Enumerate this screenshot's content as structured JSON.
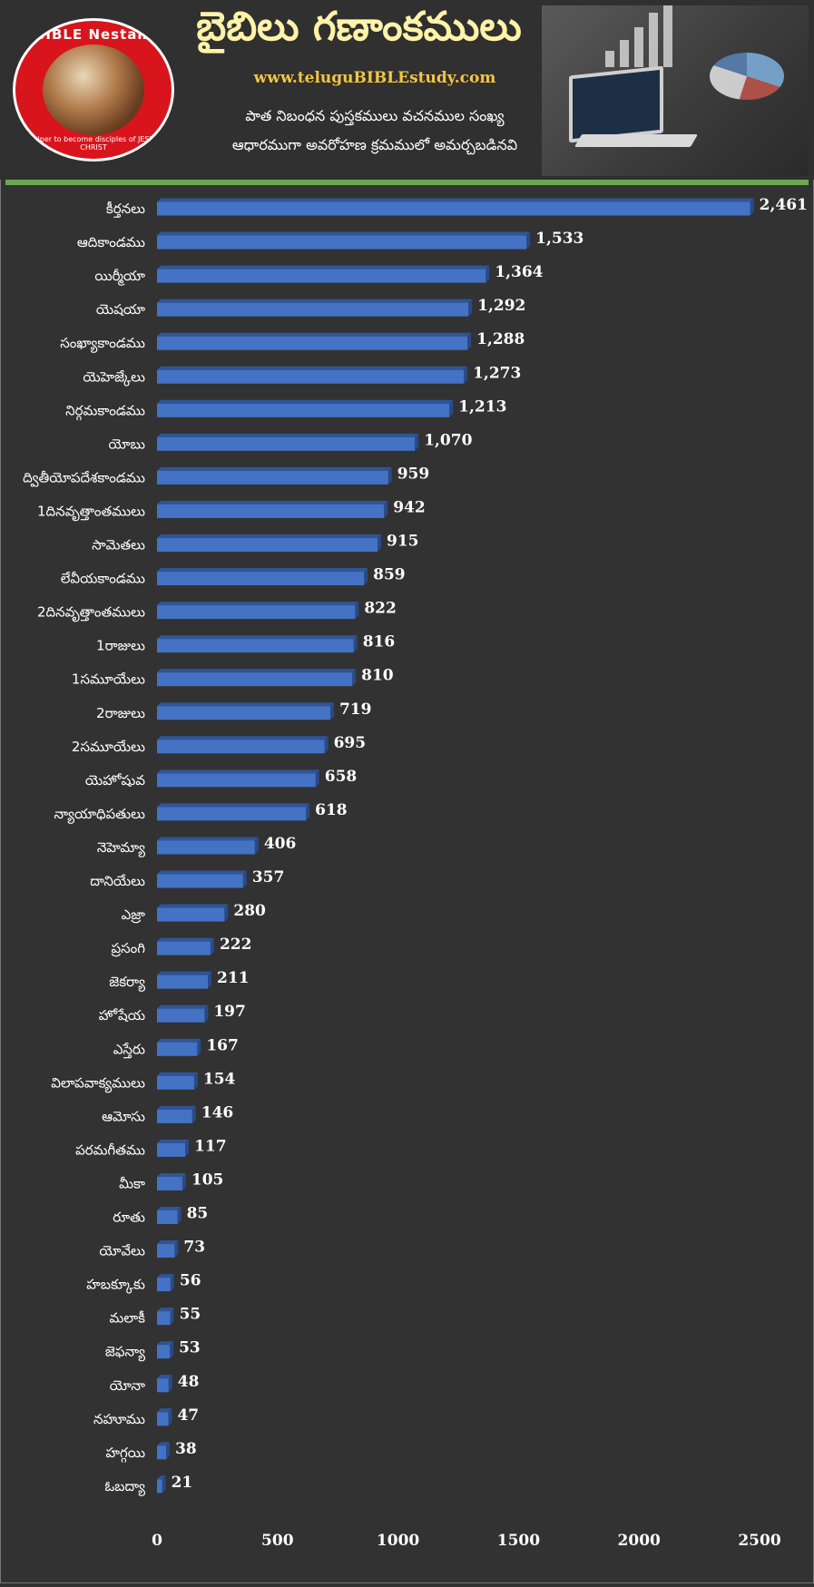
{
  "header": {
    "title": "బైబిలు గణాంకములు",
    "website": "www.teluguBIBLEstudy.com",
    "subtitle_line1": "పాత నిబంధన పుస్తకములు వచనముల సంఖ్య",
    "subtitle_line2": "ఆధారముగా అవరోహణ క్రమములో అమర్చబడినవి",
    "logo_text": "BIBLE Nestam",
    "logo_tagline": "Helper to become disciples of JESUS CHRIST"
  },
  "colors": {
    "background": "#323232",
    "bar": "#4472c4",
    "bar_top": "#2f5597",
    "accent_rule": "#6aa84f",
    "title": "#fff3a8",
    "website": "#f3c544"
  },
  "chart_data": {
    "type": "bar",
    "orientation": "horizontal",
    "categories": [
      "కీర్తనలు",
      "ఆదికాండము",
      "యిర్మీయా",
      "యెషయా",
      "సంఖ్యాకాండము",
      "యెహెజ్కేలు",
      "నిర్గమకాండము",
      "యోబు",
      "ద్వితీయోపదేశకాండము",
      "1దినవృత్తాంతములు",
      "సామెతలు",
      "లేవీయకాండము",
      "2దినవృత్తాంతములు",
      "1రాజులు",
      "1సమూయేలు",
      "2రాజులు",
      "2సమూయేలు",
      "యెహోషువ",
      "న్యాయాధిపతులు",
      "నెహెమ్యా",
      "దానియేలు",
      "ఎజ్రా",
      "ప్రసంగి",
      "జెకర్యా",
      "హోషేయ",
      "ఎస్తేరు",
      "విలాపవాక్యములు",
      "ఆమోసు",
      "పరమగీతము",
      "మీకా",
      "రూతు",
      "యోవేలు",
      "హబక్కూకు",
      "మలాకీ",
      "జెఫన్యా",
      "యోనా",
      "నహూము",
      "హగ్గయి",
      "ఓబద్యా"
    ],
    "values": [
      2461,
      1533,
      1364,
      1292,
      1288,
      1273,
      1213,
      1070,
      959,
      942,
      915,
      859,
      822,
      816,
      810,
      719,
      695,
      658,
      618,
      406,
      357,
      280,
      222,
      211,
      197,
      167,
      154,
      146,
      117,
      105,
      85,
      73,
      56,
      55,
      53,
      48,
      47,
      38,
      21
    ],
    "value_labels": [
      "2,461",
      "1,533",
      "1,364",
      "1,292",
      "1,288",
      "1,273",
      "1,213",
      "1,070",
      "959",
      "942",
      "915",
      "859",
      "822",
      "816",
      "810",
      "719",
      "695",
      "658",
      "618",
      "406",
      "357",
      "280",
      "222",
      "211",
      "197",
      "167",
      "154",
      "146",
      "117",
      "105",
      "85",
      "73",
      "56",
      "55",
      "53",
      "48",
      "47",
      "38",
      "21"
    ],
    "x_ticks": [
      0,
      500,
      1000,
      1500,
      2000,
      2500
    ],
    "xlim": [
      0,
      2500
    ],
    "title": "",
    "xlabel": "",
    "ylabel": "",
    "grid": false,
    "legend": "none"
  }
}
